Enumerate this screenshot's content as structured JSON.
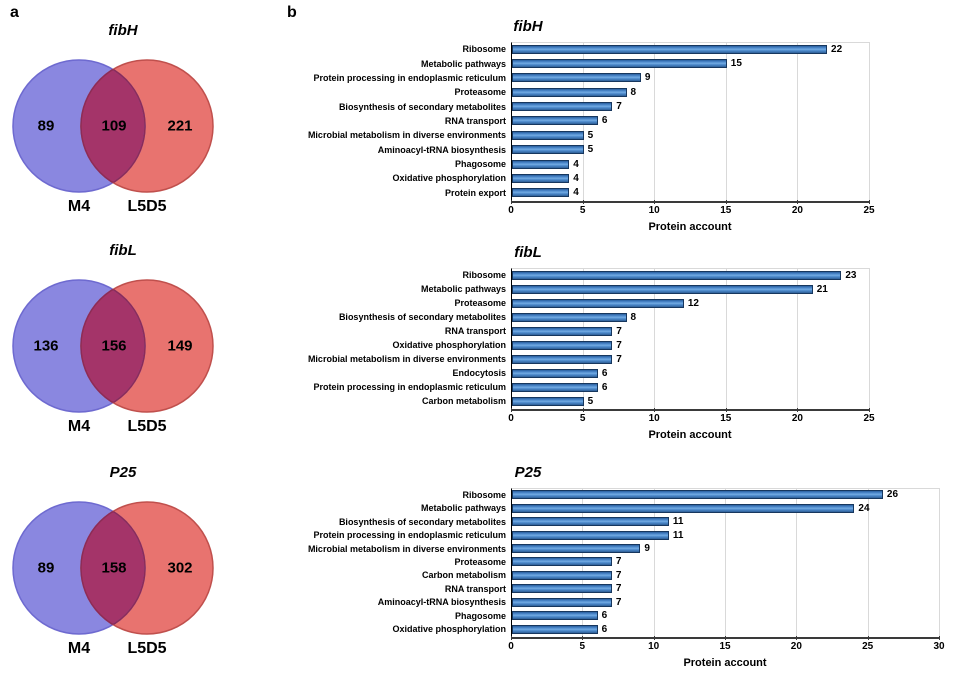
{
  "panel_labels": {
    "a": "a",
    "b": "b"
  },
  "colors": {
    "venn_left_fill": "#8a87e0",
    "venn_left_stroke": "#6e6ad0",
    "venn_right_fill": "#e8736f",
    "venn_right_stroke": "#c0504d",
    "venn_overlap_fill": "#a43469",
    "venn_overlap_stroke": "#8c2b58",
    "bar_border": "#17375e",
    "bar_top": "#2a5f9e",
    "bar_mid": "#4e8bcd",
    "bar_light": "#74abe2",
    "bar_bottom": "#2f5f97",
    "gridline": "#d9d9d9"
  },
  "venns": [
    {
      "title": "fibH",
      "left_label": "M4",
      "right_label": "L5D5",
      "left_count": "89",
      "overlap_count": "109",
      "right_count": "221"
    },
    {
      "title": "fibL",
      "left_label": "M4",
      "right_label": "L5D5",
      "left_count": "136",
      "overlap_count": "156",
      "right_count": "149"
    },
    {
      "title": "P25",
      "left_label": "M4",
      "right_label": "L5D5",
      "left_count": "89",
      "overlap_count": "158",
      "right_count": "302"
    }
  ],
  "chart_data": [
    {
      "type": "bar",
      "title": "fibH",
      "xlabel": "Protein account",
      "ylabel": "",
      "orientation": "horizontal",
      "grid": true,
      "xlim": [
        0,
        25
      ],
      "xticks": [
        0,
        5,
        10,
        15,
        20,
        25
      ],
      "categories": [
        "Ribosome",
        "Metabolic pathways",
        "Protein processing in endoplasmic reticulum",
        "Proteasome",
        "Biosynthesis of secondary metabolites",
        "RNA transport",
        "Microbial metabolism in diverse environments",
        "Aminoacyl-tRNA biosynthesis",
        "Phagosome",
        "Oxidative phosphorylation",
        "Protein export"
      ],
      "values": [
        22,
        15,
        9,
        8,
        7,
        6,
        5,
        5,
        4,
        4,
        4
      ]
    },
    {
      "type": "bar",
      "title": "fibL",
      "xlabel": "Protein account",
      "ylabel": "",
      "orientation": "horizontal",
      "grid": true,
      "xlim": [
        0,
        25
      ],
      "xticks": [
        0,
        5,
        10,
        15,
        20,
        25
      ],
      "categories": [
        "Ribosome",
        "Metabolic pathways",
        "Proteasome",
        "Biosynthesis of secondary metabolites",
        "RNA transport",
        "Oxidative phosphorylation",
        "Microbial metabolism in diverse environments",
        "Endocytosis",
        "Protein processing in endoplasmic reticulum",
        "Carbon metabolism"
      ],
      "values": [
        23,
        21,
        12,
        8,
        7,
        7,
        7,
        6,
        6,
        5
      ]
    },
    {
      "type": "bar",
      "title": "P25",
      "xlabel": "Protein account",
      "ylabel": "",
      "orientation": "horizontal",
      "grid": true,
      "xlim": [
        0,
        30
      ],
      "xticks": [
        0,
        5,
        10,
        15,
        20,
        25,
        30
      ],
      "categories": [
        "Ribosome",
        "Metabolic pathways",
        "Biosynthesis of secondary metabolites",
        "Protein processing in endoplasmic reticulum",
        "Microbial metabolism in diverse environments",
        "Proteasome",
        "Carbon metabolism",
        "RNA transport",
        "Aminoacyl-tRNA biosynthesis",
        "Phagosome",
        "Oxidative phosphorylation"
      ],
      "values": [
        26,
        24,
        11,
        11,
        9,
        7,
        7,
        7,
        7,
        6,
        6
      ]
    }
  ]
}
